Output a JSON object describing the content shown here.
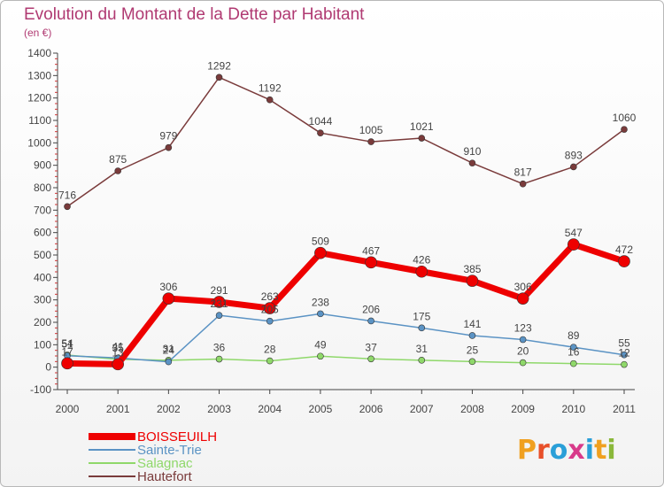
{
  "chart_data": {
    "type": "line",
    "title": "Evolution du Montant de la Dette par Habitant",
    "subtitle": "(en €)",
    "x": [
      "2000",
      "2001",
      "2002",
      "2003",
      "2004",
      "2005",
      "2006",
      "2007",
      "2008",
      "2009",
      "2010",
      "2011"
    ],
    "ylim": [
      -100,
      1400
    ],
    "yticks": [
      -100,
      0,
      100,
      200,
      300,
      400,
      500,
      600,
      700,
      800,
      900,
      1000,
      1100,
      1200,
      1300,
      1400
    ],
    "grid": false,
    "legend_position": "bottom-left",
    "series": [
      {
        "name": "BOISSEUILH",
        "color": "#ee0000",
        "values": [
          17,
          13,
          306,
          291,
          263,
          509,
          467,
          426,
          385,
          306,
          547,
          472
        ],
        "labels": [
          "17",
          "13",
          "306",
          "291",
          "263",
          "509",
          "467",
          "426",
          "385",
          "306",
          "547",
          "472"
        ]
      },
      {
        "name": "Sainte-Trie",
        "color": "#5b93c4",
        "values": [
          51,
          41,
          24,
          231,
          205,
          238,
          206,
          175,
          141,
          123,
          89,
          55
        ],
        "labels": [
          "51",
          "41",
          "24",
          "231",
          "205",
          "238",
          "206",
          "175",
          "141",
          "123",
          "89",
          "55"
        ]
      },
      {
        "name": "Salagnac",
        "color": "#8fd86a",
        "values": [
          54,
          35,
          31,
          36,
          28,
          49,
          37,
          31,
          25,
          20,
          16,
          12
        ],
        "labels": [
          "54",
          "35",
          "31",
          "36",
          "28",
          "49",
          "37",
          "31",
          "25",
          "20",
          "16",
          "12"
        ]
      },
      {
        "name": "Hautefort",
        "color": "#7a3b3b",
        "values": [
          716,
          875,
          979,
          1292,
          1192,
          1044,
          1005,
          1021,
          910,
          817,
          893,
          1060
        ],
        "labels": [
          "716",
          "875",
          "979",
          "1292",
          "1192",
          "1044",
          "1005",
          "1021",
          "910",
          "817",
          "893",
          "1060"
        ]
      }
    ]
  },
  "logo": {
    "text": "Proxiti",
    "letters": [
      "P",
      "r",
      "o",
      "x",
      "i",
      "t",
      "i"
    ],
    "colors": [
      "#f0a020",
      "#e8502a",
      "#2a9fd8",
      "#d83a8a",
      "#2a9fd8",
      "#f0a020",
      "#8ab83a"
    ]
  }
}
